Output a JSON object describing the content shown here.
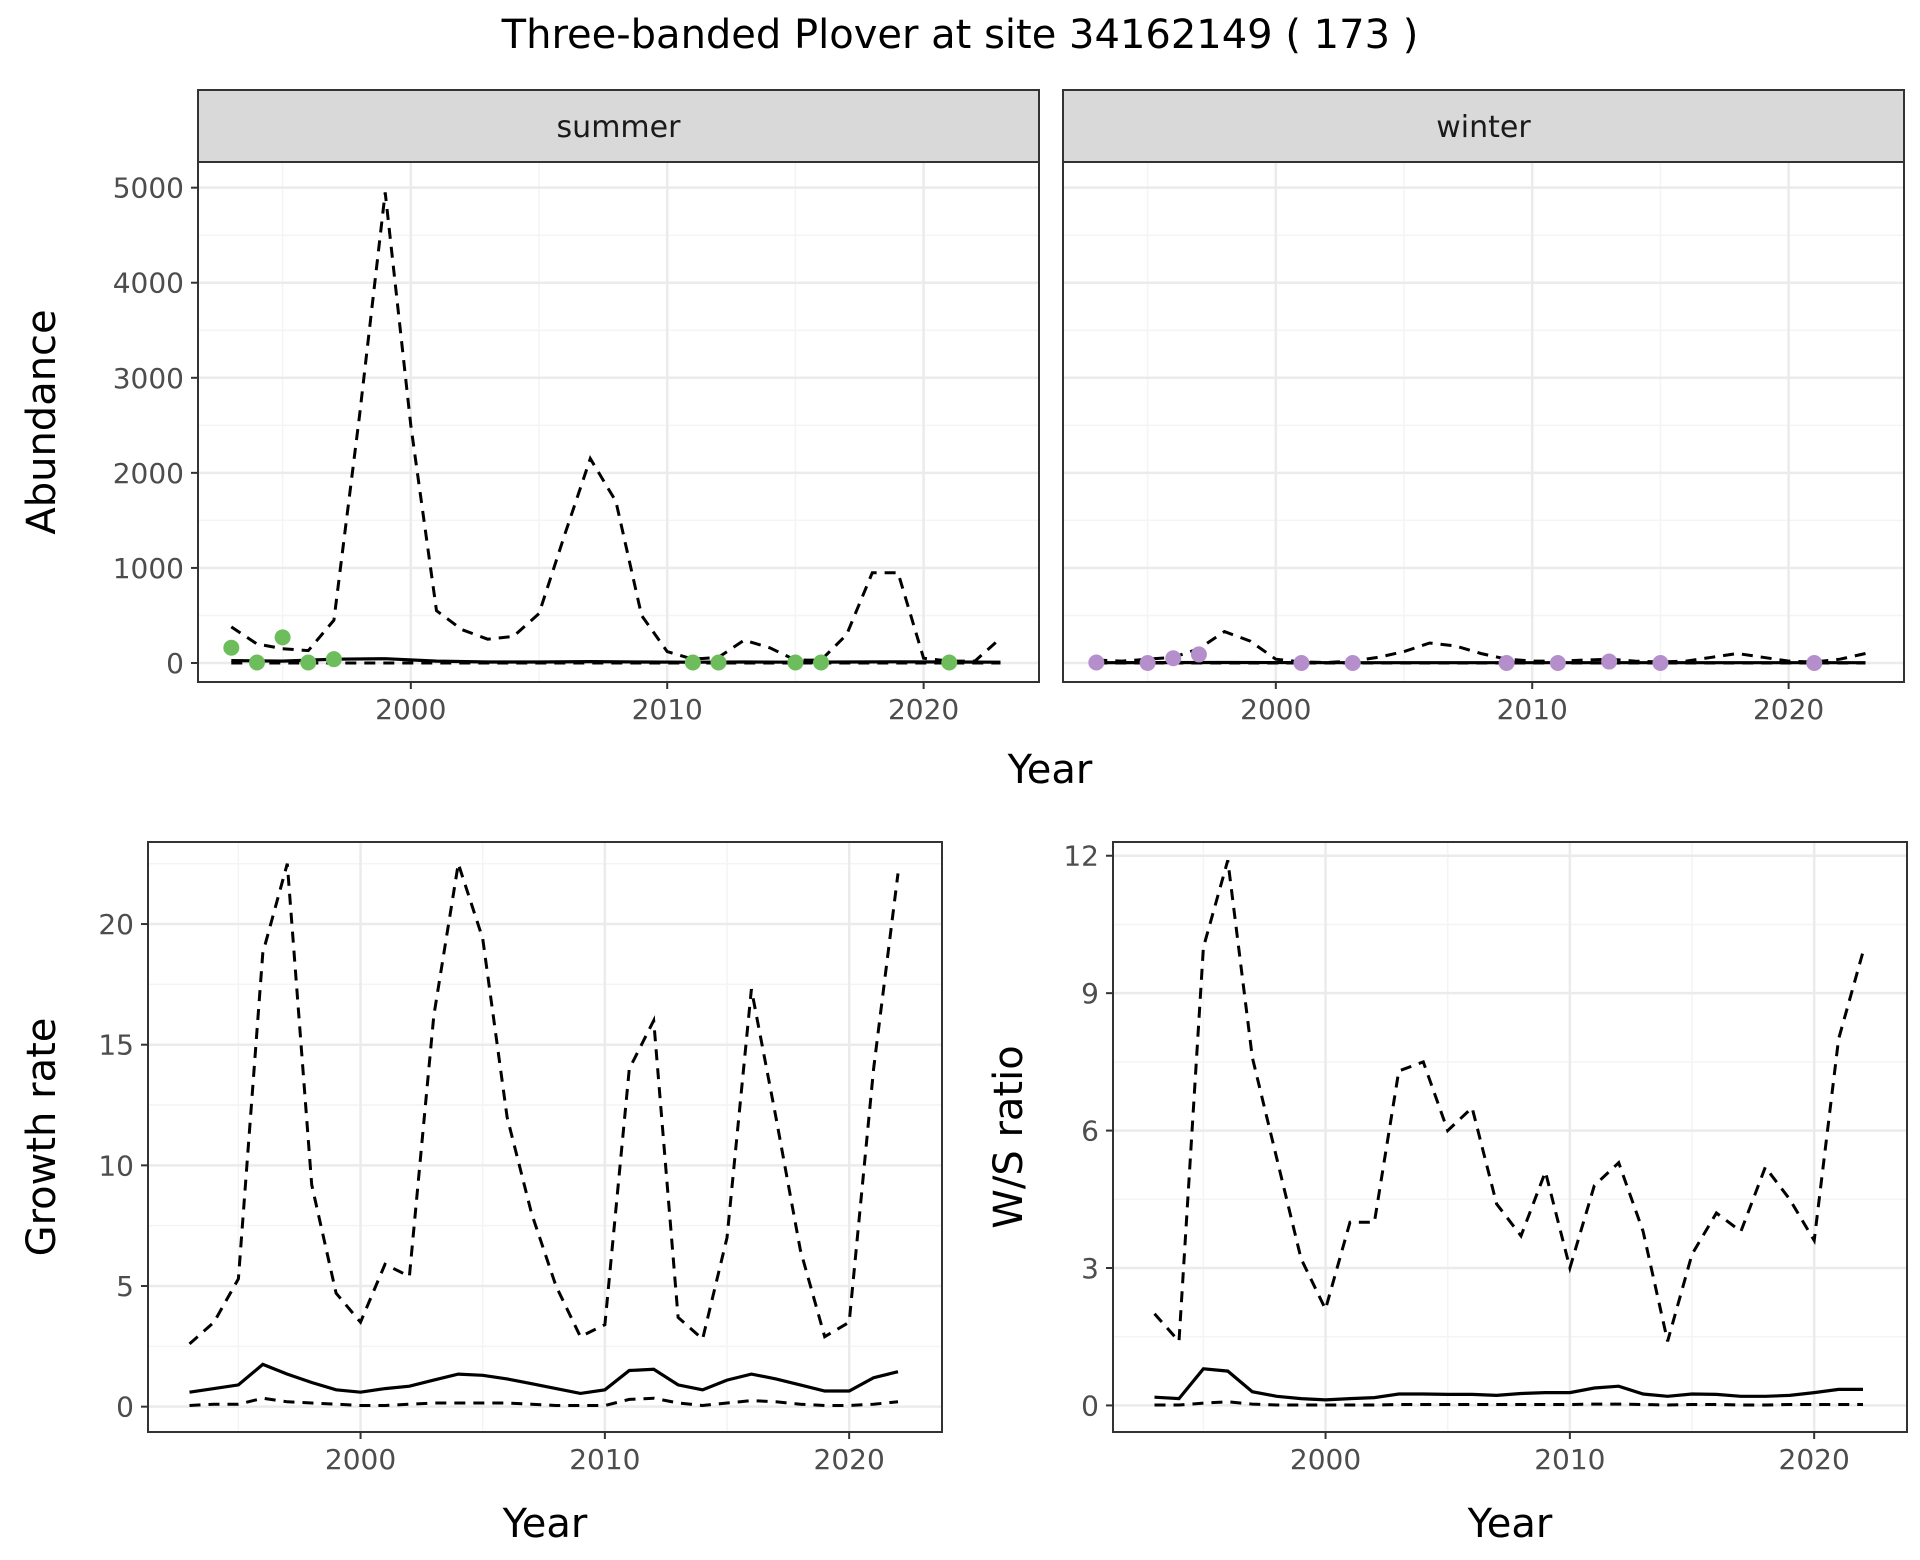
{
  "title": "Three-banded Plover at site 34162149 ( 173 )",
  "colors": {
    "summer_points": "#6ebd5c",
    "winter_points": "#b48fcc",
    "strip_fill": "#d9d9d9",
    "grid_major": "#ebebeb",
    "grid_minor": "#f4f4f4",
    "panel_border": "#333333",
    "tick_text": "#4d4d4d",
    "line": "#000000"
  },
  "chart_data": [
    {
      "id": "abundance",
      "type": "line",
      "facets": [
        "summer",
        "winter"
      ],
      "xlabel": "Year",
      "ylabel": "Abundance",
      "xlim": [
        1991.7,
        2024.5
      ],
      "ylim": [
        -200,
        5270
      ],
      "x_ticks": [
        2000,
        2010,
        2020
      ],
      "y_ticks": [
        0,
        1000,
        2000,
        3000,
        4000,
        5000
      ],
      "grid": true,
      "panels": [
        {
          "facet": "summer",
          "upper": {
            "x": [
              1993,
              1994,
              1995,
              1996,
              1997,
              1998,
              1999,
              2000,
              2001,
              2002,
              2003,
              2004,
              2005,
              2006,
              2007,
              2008,
              2009,
              2010,
              2011,
              2012,
              2013,
              2014,
              2015,
              2016,
              2017,
              2018,
              2019,
              2020,
              2021,
              2022,
              2023
            ],
            "y": [
              380,
              200,
              150,
              130,
              450,
              2600,
              4950,
              2500,
              550,
              350,
              250,
              280,
              520,
              1350,
              2150,
              1700,
              500,
              120,
              40,
              60,
              240,
              160,
              30,
              30,
              300,
              950,
              950,
              50,
              20,
              20,
              260
            ]
          },
          "mean": {
            "x": [
              1993,
              1995,
              1997,
              1999,
              2001,
              2003,
              2005,
              2007,
              2009,
              2011,
              2013,
              2015,
              2017,
              2019,
              2021,
              2023
            ],
            "y": [
              25,
              20,
              40,
              45,
              20,
              10,
              10,
              15,
              10,
              8,
              10,
              8,
              10,
              12,
              10,
              8
            ]
          },
          "lower": {
            "x": [
              1993,
              1997,
              2003,
              2010,
              2016,
              2023
            ],
            "y": [
              0,
              0,
              0,
              0,
              0,
              0
            ]
          },
          "points": {
            "x": [
              1993,
              1994,
              1995,
              1996,
              1997,
              2011,
              2012,
              2015,
              2016,
              2021
            ],
            "y": [
              160,
              5,
              270,
              5,
              40,
              5,
              5,
              5,
              5,
              5
            ]
          }
        },
        {
          "facet": "winter",
          "upper": {
            "x": [
              1993,
              1994,
              1995,
              1996,
              1997,
              1998,
              1999,
              2000,
              2001,
              2002,
              2003,
              2004,
              2005,
              2006,
              2007,
              2008,
              2009,
              2010,
              2011,
              2012,
              2013,
              2014,
              2015,
              2016,
              2017,
              2018,
              2019,
              2020,
              2021,
              2022,
              2023
            ],
            "y": [
              30,
              20,
              40,
              60,
              150,
              330,
              230,
              40,
              10,
              5,
              20,
              60,
              120,
              210,
              180,
              100,
              40,
              20,
              20,
              30,
              40,
              20,
              10,
              20,
              60,
              100,
              60,
              20,
              10,
              40,
              100
            ]
          },
          "mean": {
            "x": [
              1993,
              1998,
              2003,
              2008,
              2013,
              2018,
              2023
            ],
            "y": [
              3,
              5,
              3,
              3,
              3,
              3,
              3
            ]
          },
          "lower": {
            "x": [
              1993,
              2008,
              2023
            ],
            "y": [
              0,
              0,
              0
            ]
          },
          "points": {
            "x": [
              1993,
              1995,
              1996,
              1997,
              2001,
              2003,
              2009,
              2011,
              2013,
              2015,
              2021
            ],
            "y": [
              5,
              0,
              50,
              90,
              0,
              0,
              0,
              0,
              15,
              0,
              0
            ]
          }
        }
      ]
    },
    {
      "id": "growth",
      "type": "line",
      "xlabel": "Year",
      "ylabel": "Growth rate",
      "xlim": [
        1991.3,
        2023.8
      ],
      "ylim": [
        -1.05,
        23.4
      ],
      "x_ticks": [
        2000,
        2010,
        2020
      ],
      "y_ticks": [
        0,
        5,
        10,
        15,
        20
      ],
      "grid": true,
      "upper": {
        "x": [
          1993,
          1994,
          1995,
          1996,
          1997,
          1998,
          1999,
          2000,
          2001,
          2002,
          2003,
          2004,
          2005,
          2006,
          2007,
          2008,
          2009,
          2010,
          2011,
          2012,
          2013,
          2014,
          2015,
          2016,
          2017,
          2018,
          2019,
          2020,
          2021,
          2022
        ],
        "y": [
          2.6,
          3.5,
          5.3,
          18.8,
          22.5,
          9.2,
          4.7,
          3.5,
          5.9,
          5.4,
          16.2,
          22.5,
          19.4,
          12.0,
          8.0,
          5.0,
          2.9,
          3.4,
          14.0,
          16.0,
          3.7,
          2.8,
          7.0,
          17.3,
          12.0,
          6.5,
          2.9,
          3.5,
          14.0,
          22.1
        ]
      },
      "mean": {
        "x": [
          1993,
          1994,
          1995,
          1996,
          1997,
          1998,
          1999,
          2000,
          2001,
          2002,
          2003,
          2004,
          2005,
          2006,
          2007,
          2008,
          2009,
          2010,
          2011,
          2012,
          2013,
          2014,
          2015,
          2016,
          2017,
          2018,
          2019,
          2020,
          2021,
          2022
        ],
        "y": [
          0.6,
          0.75,
          0.9,
          1.75,
          1.35,
          1.0,
          0.7,
          0.6,
          0.75,
          0.85,
          1.1,
          1.35,
          1.3,
          1.15,
          0.95,
          0.75,
          0.55,
          0.7,
          1.5,
          1.55,
          0.9,
          0.7,
          1.1,
          1.35,
          1.15,
          0.9,
          0.65,
          0.65,
          1.2,
          1.45
        ]
      },
      "lower": {
        "x": [
          1993,
          1994,
          1995,
          1996,
          1997,
          1998,
          1999,
          2000,
          2001,
          2002,
          2003,
          2004,
          2005,
          2006,
          2007,
          2008,
          2009,
          2010,
          2011,
          2012,
          2013,
          2014,
          2015,
          2016,
          2017,
          2018,
          2019,
          2020,
          2021,
          2022
        ],
        "y": [
          0.05,
          0.1,
          0.1,
          0.35,
          0.2,
          0.15,
          0.1,
          0.05,
          0.05,
          0.1,
          0.15,
          0.15,
          0.15,
          0.15,
          0.1,
          0.05,
          0.05,
          0.05,
          0.3,
          0.35,
          0.15,
          0.05,
          0.15,
          0.25,
          0.2,
          0.1,
          0.05,
          0.05,
          0.1,
          0.2
        ]
      }
    },
    {
      "id": "ws_ratio",
      "type": "line",
      "xlabel": "Year",
      "ylabel": "W/S ratio",
      "xlim": [
        1991.3,
        2023.8
      ],
      "ylim": [
        -0.58,
        12.3
      ],
      "x_ticks": [
        2000,
        2010,
        2020
      ],
      "y_ticks": [
        0,
        3,
        6,
        9,
        12
      ],
      "grid": true,
      "upper": {
        "x": [
          1993,
          1994,
          1995,
          1996,
          1997,
          1998,
          1999,
          2000,
          2001,
          2002,
          2003,
          2004,
          2005,
          2006,
          2007,
          2008,
          2009,
          2010,
          2011,
          2012,
          2013,
          2014,
          2015,
          2016,
          2017,
          2018,
          2019,
          2020,
          2021,
          2022
        ],
        "y": [
          2.0,
          1.4,
          10.0,
          11.9,
          7.6,
          5.4,
          3.2,
          2.1,
          4.0,
          4.0,
          7.3,
          7.5,
          6.0,
          6.5,
          4.4,
          3.7,
          5.1,
          3.0,
          4.8,
          5.3,
          3.8,
          1.4,
          3.3,
          4.2,
          3.8,
          5.2,
          4.5,
          3.6,
          8.0,
          9.9
        ]
      },
      "mean": {
        "x": [
          1993,
          1994,
          1995,
          1996,
          1997,
          1998,
          1999,
          2000,
          2001,
          2002,
          2003,
          2004,
          2005,
          2006,
          2007,
          2008,
          2009,
          2010,
          2011,
          2012,
          2013,
          2014,
          2015,
          2016,
          2017,
          2018,
          2019,
          2020,
          2021,
          2022
        ],
        "y": [
          0.18,
          0.15,
          0.8,
          0.75,
          0.3,
          0.2,
          0.15,
          0.12,
          0.15,
          0.17,
          0.25,
          0.25,
          0.24,
          0.24,
          0.22,
          0.26,
          0.28,
          0.28,
          0.38,
          0.42,
          0.25,
          0.2,
          0.25,
          0.24,
          0.2,
          0.2,
          0.22,
          0.28,
          0.35,
          0.35
        ]
      },
      "lower": {
        "x": [
          1993,
          1994,
          1995,
          1996,
          1997,
          1998,
          1999,
          2000,
          2001,
          2002,
          2003,
          2004,
          2005,
          2006,
          2007,
          2008,
          2009,
          2010,
          2011,
          2012,
          2013,
          2014,
          2015,
          2016,
          2017,
          2018,
          2019,
          2020,
          2021,
          2022
        ],
        "y": [
          0.01,
          0.01,
          0.05,
          0.08,
          0.03,
          0.01,
          0.01,
          0.01,
          0.01,
          0.01,
          0.02,
          0.02,
          0.02,
          0.02,
          0.02,
          0.02,
          0.02,
          0.02,
          0.03,
          0.03,
          0.02,
          0.01,
          0.02,
          0.02,
          0.01,
          0.01,
          0.02,
          0.02,
          0.02,
          0.02
        ]
      }
    }
  ]
}
